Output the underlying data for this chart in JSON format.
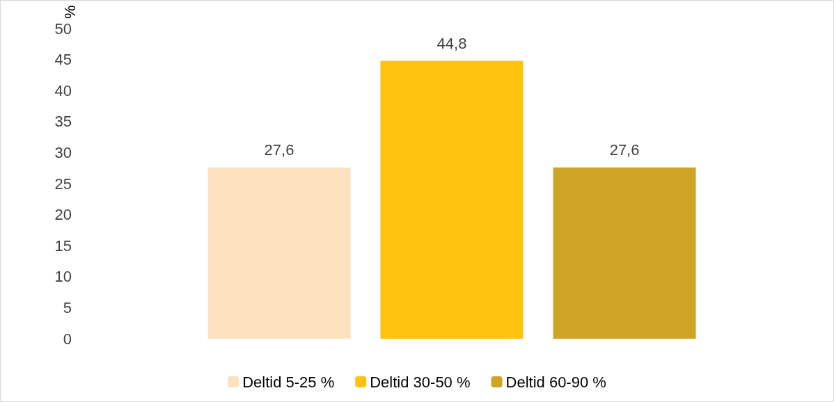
{
  "chart_data": {
    "type": "bar",
    "ylabel": "%",
    "categories": [
      null
    ],
    "series": [
      {
        "name": "Deltid 5-25 %",
        "color": "#fde2bf",
        "values": [
          27.6
        ],
        "value_labels": [
          "27,6"
        ]
      },
      {
        "name": "Deltid 30-50 %",
        "color": "#ffc20e",
        "values": [
          44.8
        ],
        "value_labels": [
          "44,8"
        ]
      },
      {
        "name": "Deltid 60-90 %",
        "color": "#cfa528",
        "values": [
          27.6
        ],
        "value_labels": [
          "27,6"
        ]
      }
    ],
    "ylim": [
      0,
      50
    ],
    "yticks": [
      0,
      5,
      10,
      15,
      20,
      25,
      30,
      35,
      40,
      45,
      50
    ],
    "grid": false,
    "legend": "bottom"
  }
}
